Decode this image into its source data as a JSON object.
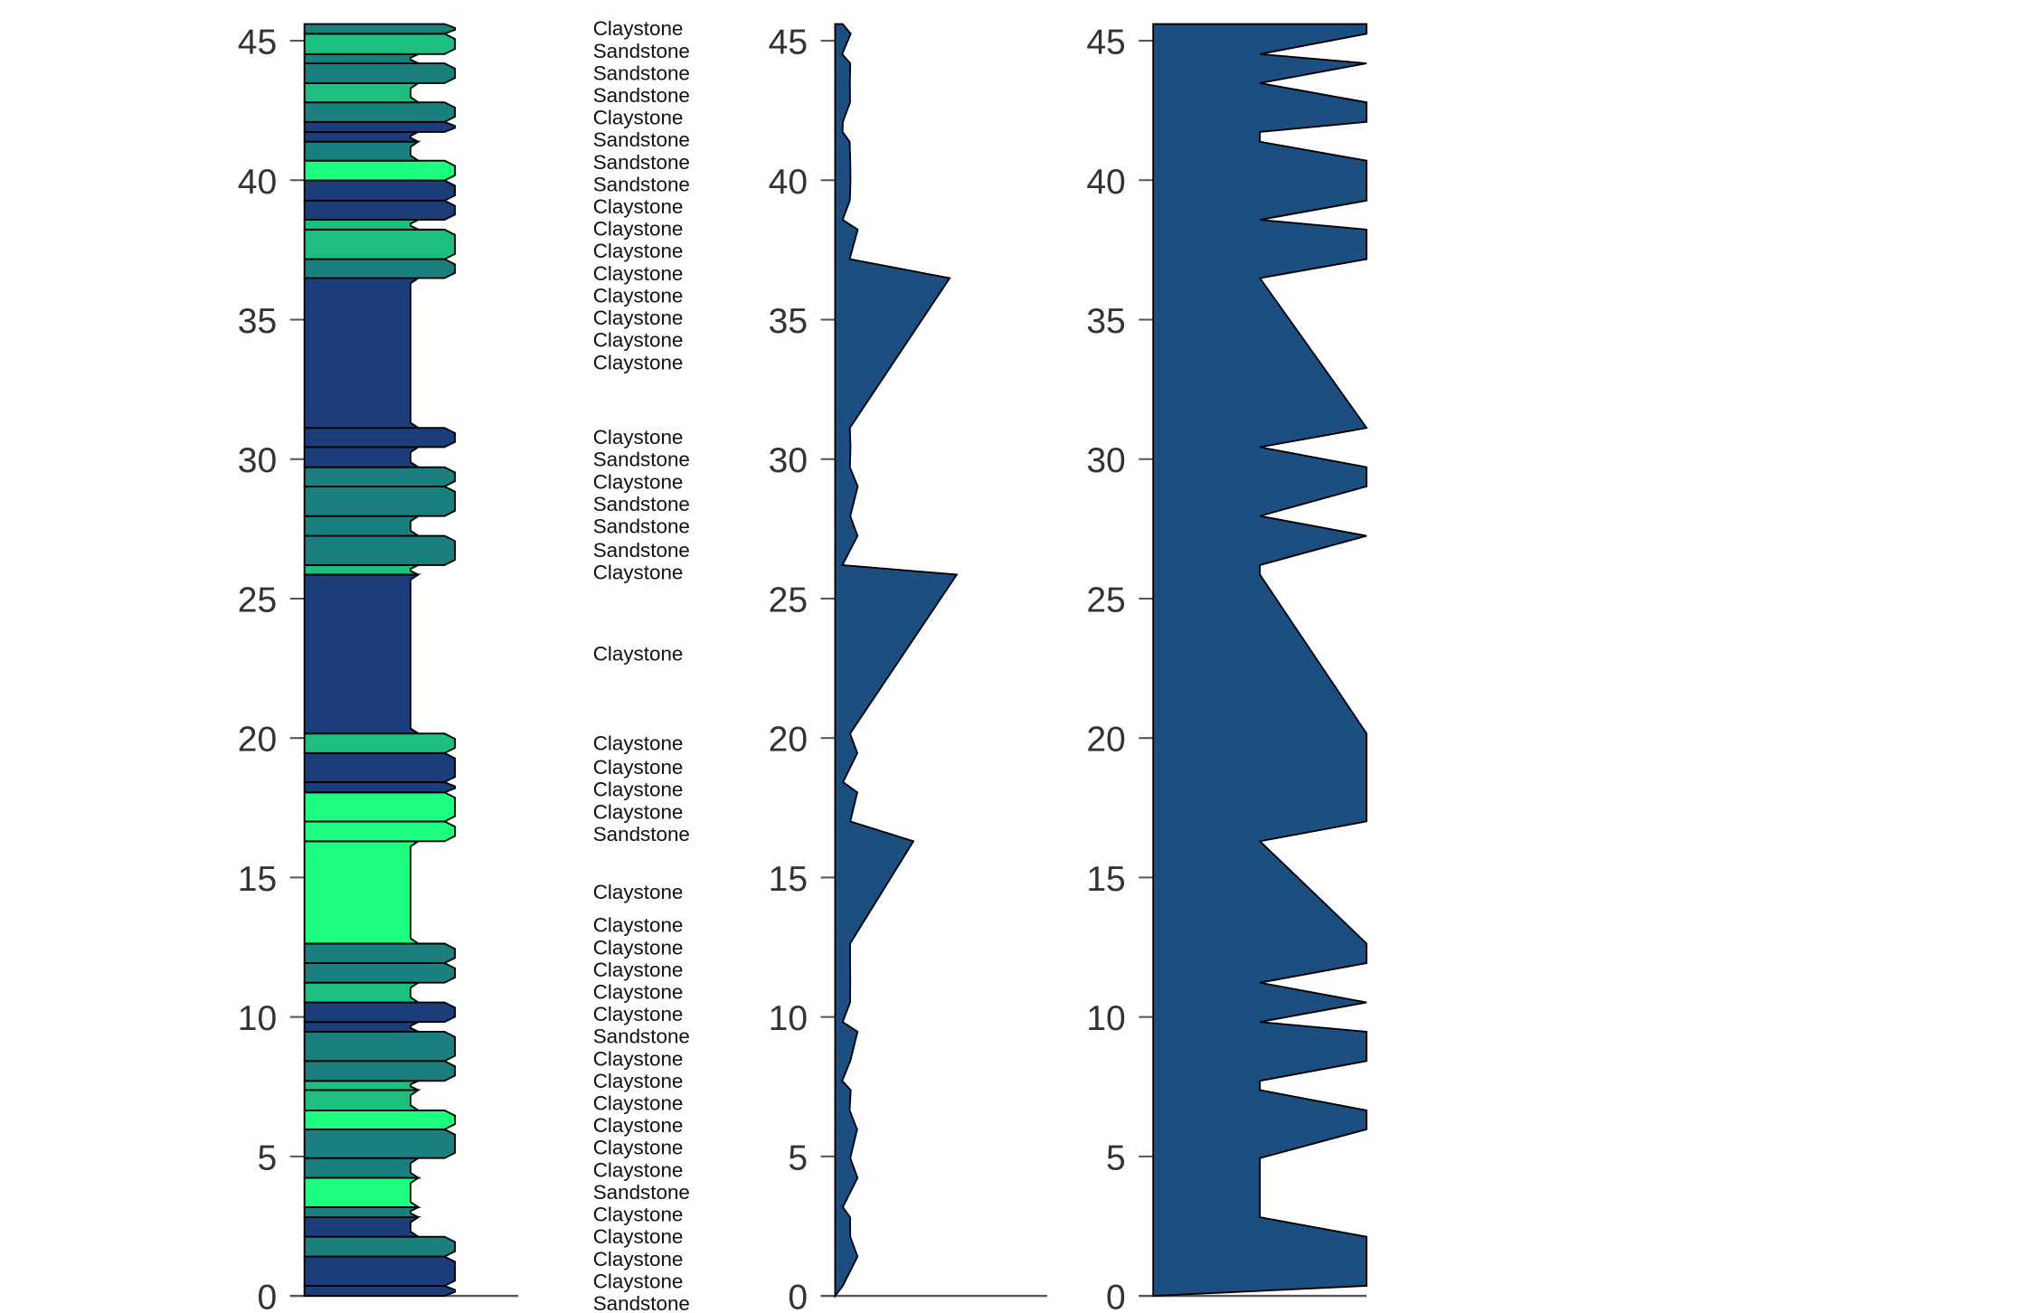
{
  "chart_data": {
    "type": "strip-log",
    "ylim": [
      0,
      45.6
    ],
    "yticks": [
      "0",
      "5",
      "10",
      "15",
      "20",
      "25",
      "30",
      "35",
      "40",
      "45"
    ],
    "colors": {
      "dark_blue": "#1b3e7b",
      "teal": "#1b7f7d",
      "green": "#1cbf7f",
      "bright_green": "#1dfe80",
      "profile_fill": "#1c4f80",
      "axis": "#555555"
    },
    "panels": [
      {
        "name": "lithology-column",
        "kind": "bed column",
        "grain_scale": [
          0,
          2
        ]
      },
      {
        "name": "thickness-profile",
        "kind": "area",
        "xlim": [
          0,
          10
        ],
        "values": "bed thickness at bed top"
      },
      {
        "name": "grain-profile",
        "kind": "area",
        "xlim": [
          0,
          2
        ],
        "values": "grain value at bed top"
      }
    ],
    "beds": [
      {
        "top": 0.36,
        "label": "Sandstone",
        "color": "dark_blue",
        "grain": 2
      },
      {
        "top": 1.41,
        "label": "Claystone",
        "color": "dark_blue",
        "grain": 2
      },
      {
        "top": 2.12,
        "label": "Claystone",
        "color": "teal",
        "grain": 2
      },
      {
        "top": 2.82,
        "label": "Claystone",
        "color": "dark_blue",
        "grain": 1
      },
      {
        "top": 3.18,
        "label": "Claystone",
        "color": "teal",
        "grain": 1
      },
      {
        "top": 4.23,
        "label": "Sandstone",
        "color": "bright_green",
        "grain": 1
      },
      {
        "top": 4.94,
        "label": "Claystone",
        "color": "teal",
        "grain": 1
      },
      {
        "top": 5.97,
        "label": "Claystone",
        "color": "teal",
        "grain": 2
      },
      {
        "top": 6.65,
        "label": "Claystone",
        "color": "bright_green",
        "grain": 2
      },
      {
        "top": 7.38,
        "label": "Claystone",
        "color": "green",
        "grain": 1
      },
      {
        "top": 7.71,
        "label": "Claystone",
        "color": "green",
        "grain": 1
      },
      {
        "top": 8.42,
        "label": "Claystone",
        "color": "teal",
        "grain": 2
      },
      {
        "top": 9.47,
        "label": "Sandstone",
        "color": "teal",
        "grain": 2
      },
      {
        "top": 9.82,
        "label": "Claystone",
        "color": "dark_blue",
        "grain": 1
      },
      {
        "top": 10.52,
        "label": "Claystone",
        "color": "dark_blue",
        "grain": 2
      },
      {
        "top": 11.23,
        "label": "Claystone",
        "color": "green",
        "grain": 1
      },
      {
        "top": 11.93,
        "label": "Claystone",
        "color": "teal",
        "grain": 2
      },
      {
        "top": 12.63,
        "label": "Claystone",
        "color": "teal",
        "grain": 2
      },
      {
        "top": 16.3,
        "label": "Claystone",
        "color": "bright_green",
        "grain": 1
      },
      {
        "top": 17.01,
        "label": "Sandstone",
        "color": "bright_green",
        "grain": 2
      },
      {
        "top": 18.05,
        "label": "Claystone",
        "color": "bright_green",
        "grain": 2
      },
      {
        "top": 18.42,
        "label": "Claystone",
        "color": "dark_blue",
        "grain": 2
      },
      {
        "top": 19.46,
        "label": "Claystone",
        "color": "dark_blue",
        "grain": 2
      },
      {
        "top": 20.16,
        "label": "Claystone",
        "color": "green",
        "grain": 2
      },
      {
        "top": 25.86,
        "label": "Claystone",
        "color": "dark_blue",
        "grain": 1
      },
      {
        "top": 26.2,
        "label": "Claystone",
        "color": "green",
        "grain": 1
      },
      {
        "top": 27.25,
        "label": "Sandstone",
        "color": "teal",
        "grain": 2
      },
      {
        "top": 27.96,
        "label": "Sandstone",
        "color": "teal",
        "grain": 1
      },
      {
        "top": 29.02,
        "label": "Sandstone",
        "color": "teal",
        "grain": 2
      },
      {
        "top": 29.71,
        "label": "Claystone",
        "color": "teal",
        "grain": 2
      },
      {
        "top": 30.43,
        "label": "Sandstone",
        "color": "dark_blue",
        "grain": 1
      },
      {
        "top": 31.12,
        "label": "Claystone",
        "color": "dark_blue",
        "grain": 2
      },
      {
        "top": 36.49,
        "label": "Claystone",
        "color": "dark_blue",
        "grain": 1
      },
      {
        "top": 37.17,
        "label": "Claystone",
        "color": "teal",
        "grain": 2
      },
      {
        "top": 38.23,
        "label": "Claystone",
        "color": "green",
        "grain": 2
      },
      {
        "top": 38.58,
        "label": "Claystone",
        "color": "green",
        "grain": 1
      },
      {
        "top": 39.27,
        "label": "Claystone",
        "color": "dark_blue",
        "grain": 2
      },
      {
        "top": 39.99,
        "label": "Claystone",
        "color": "dark_blue",
        "grain": 2
      },
      {
        "top": 40.7,
        "label": "Claystone",
        "color": "bright_green",
        "grain": 2
      },
      {
        "top": 41.38,
        "label": "Claystone",
        "color": "teal",
        "grain": 1
      },
      {
        "top": 41.73,
        "label": "Sandstone",
        "color": "dark_blue",
        "grain": 1
      },
      {
        "top": 42.09,
        "label": "Sandstone",
        "color": "dark_blue",
        "grain": 2
      },
      {
        "top": 42.79,
        "label": "Sandstone",
        "color": "teal",
        "grain": 2
      },
      {
        "top": 43.48,
        "label": "Claystone",
        "color": "green",
        "grain": 1
      },
      {
        "top": 44.19,
        "label": "Sandstone",
        "color": "teal",
        "grain": 2
      },
      {
        "top": 44.52,
        "label": "Sandstone",
        "color": "teal",
        "grain": 1
      },
      {
        "top": 45.25,
        "label": "Sandstone",
        "color": "green",
        "grain": 2
      },
      {
        "top": 45.6,
        "label": "Claystone",
        "color": "teal",
        "grain": 2
      }
    ]
  }
}
